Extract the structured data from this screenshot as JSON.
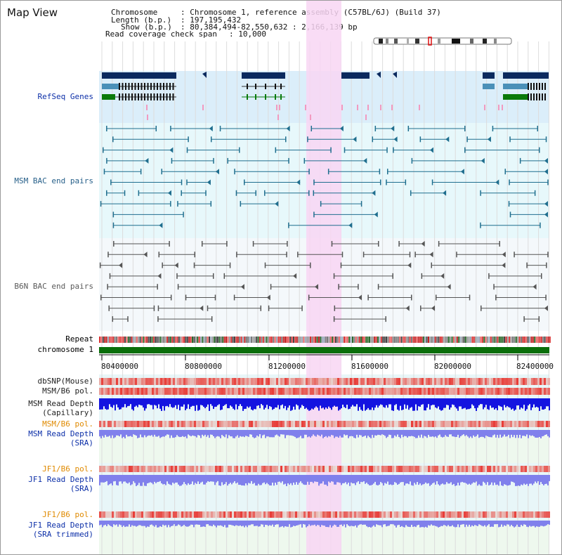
{
  "page": {
    "title": "Map View"
  },
  "info": {
    "chromosome_label": "Chromosome",
    "chromosome_value": ": Chromosome 1, reference assembly (C57BL/6J) (Build 37)",
    "length_label": "Length (b.p.)",
    "length_value": ": 197,195,432",
    "show_label": "Show (b.p.)",
    "show_value": ": 80,384,494-82,550,632 : 2,166,139 bp",
    "coverage_label": "Read coverage check span",
    "coverage_value": ": 10,000"
  },
  "tracks": {
    "refseq": "RefSeq Genes",
    "msm_bac": "MSM BAC end pairs",
    "b6n_bac": "B6N BAC end pairs",
    "repeat": "Repeat",
    "chromosome": "chromosome 1",
    "dbsnp": "dbSNP(Mouse)",
    "msm_b6_pol": "MSM/B6 pol.",
    "msm_depth_cap_1": "MSM Read Depth",
    "msm_depth_cap_2": "(Capillary)",
    "msm_b6_pol_2": "MSM/B6 pol.",
    "msm_depth_sra_1": "MSM Read Depth",
    "msm_depth_sra_2": "(SRA)",
    "jf1_b6_pol": "JF1/B6 pol.",
    "jf1_depth_sra_1": "JF1 Read Depth",
    "jf1_depth_sra_2": "(SRA)",
    "jf1_b6_pol_2": "JF1/B6 pol.",
    "jf1_depth_trim_1": "JF1 Read Depth",
    "jf1_depth_trim_2": "(SRA trimmed)"
  },
  "axis": {
    "ticks": [
      "80400000",
      "80800000",
      "81200000",
      "81600000",
      "82000000",
      "82400000"
    ]
  },
  "colors": {
    "refseq_bg": "#dbeefa",
    "msm_bg": "#e7f8fb",
    "highlight": "#f8d6f3",
    "chromosome_bar": "#0a6e0a",
    "gene_dark": "#0b2a5e",
    "gene_mid": "#4a90b8",
    "gene_green": "#0a7a0a",
    "msm_pair": "#1f6e8e",
    "b6n_pair": "#555555",
    "depth_blue": "#1414e0",
    "depth_light": "#8080ec",
    "pol_red": "#e8433f"
  }
}
